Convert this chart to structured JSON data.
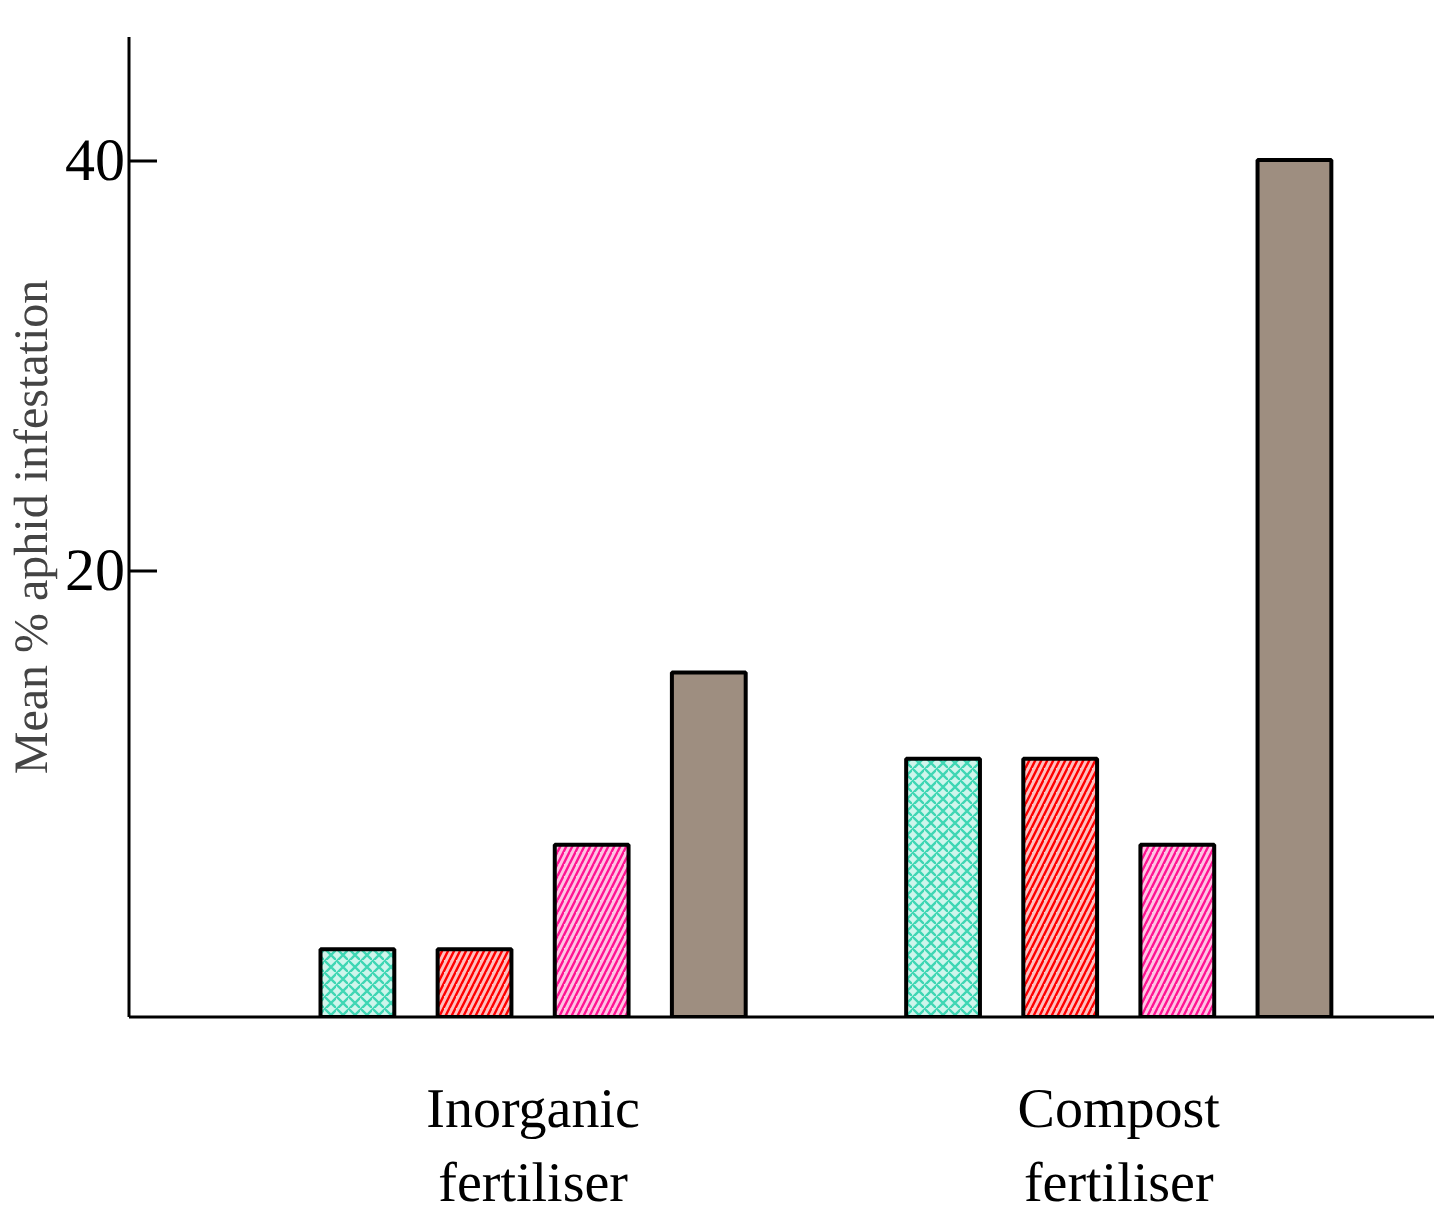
{
  "chart_data": {
    "type": "bar",
    "ylabel": "Mean % aphid infestation",
    "categories": [
      "Inorganic\nfertiliser",
      "Compost\nfertiliser"
    ],
    "series": [
      {
        "color": "#3fd6b4",
        "values": [
          3.3,
          12.6
        ],
        "base": [
          -1.8,
          -1.8
        ]
      },
      {
        "color": "#ff0000",
        "values": [
          3.3,
          12.6
        ],
        "base": [
          -1.8,
          -1.8
        ]
      },
      {
        "color": "#ff1493",
        "values": [
          8.4,
          8.4
        ],
        "base": [
          -1.8,
          -1.8
        ]
      },
      {
        "color": "#9e8e80",
        "values": [
          16.8,
          41.8
        ],
        "base": [
          -1.8,
          -1.8
        ]
      }
    ],
    "ylim": [
      -1.8,
      46
    ],
    "yticks": [
      20,
      40
    ],
    "grid": false
  }
}
